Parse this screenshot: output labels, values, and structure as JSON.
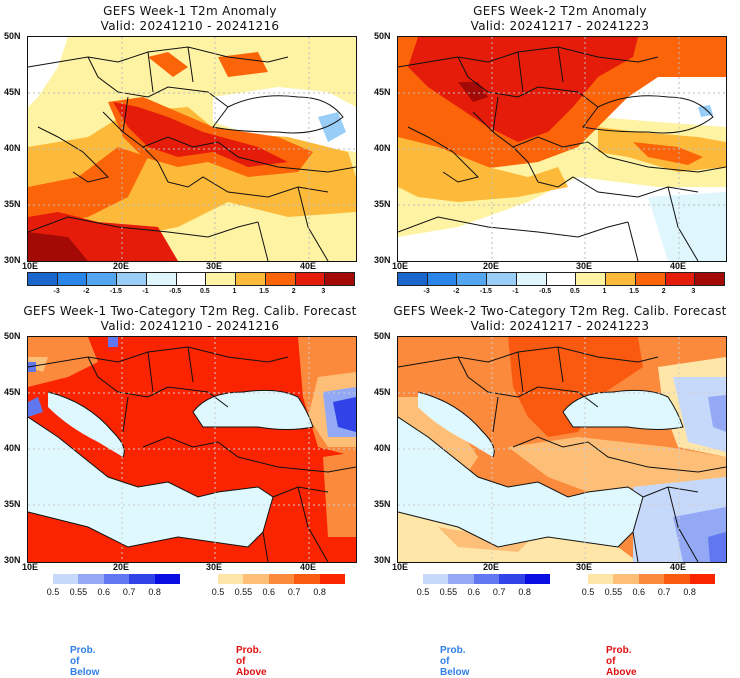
{
  "panels": [
    {
      "title": "GEFS Week-1 T2m Anomaly",
      "valid": "Valid: 20241210 - 20241216",
      "type": "anomaly"
    },
    {
      "title": "GEFS Week-2 T2m Anomaly",
      "valid": "Valid: 20241217 - 20241223",
      "type": "anomaly"
    },
    {
      "title": "GEFS Week-1 Two-Category T2m Reg. Calib. Forecast",
      "valid": "Valid: 20241210 - 20241216",
      "type": "probability"
    },
    {
      "title": "GEFS Week-2 Two-Category T2m Reg. Calib. Forecast",
      "valid": "Valid: 20241217 - 20241223",
      "type": "probability"
    }
  ],
  "axes": {
    "lat_labels": [
      "50N",
      "45N",
      "40N",
      "35N",
      "30N"
    ],
    "lon_labels": [
      "10E",
      "20E",
      "30E",
      "40E"
    ]
  },
  "anomaly_colorbar": {
    "labels": [
      "-3",
      "-2",
      "-1.5",
      "-1",
      "-0.5",
      "0.5",
      "1",
      "1.5",
      "2",
      "3"
    ],
    "colors": [
      "#1a66cc",
      "#2a85e8",
      "#55a6f0",
      "#97cdf7",
      "#dff6fd",
      "#ffffff",
      "#fef3a3",
      "#fdba3a",
      "#fb6408",
      "#e61c0a",
      "#a30a05"
    ]
  },
  "prob_below_colorbar": {
    "labels": [
      "0.5",
      "0.55",
      "0.6",
      "0.7",
      "0.8"
    ],
    "colors": [
      "#c7d9fb",
      "#93a9f5",
      "#6077ef",
      "#2f43e8",
      "#0a0ee0"
    ]
  },
  "prob_above_colorbar": {
    "labels": [
      "0.5",
      "0.55",
      "0.6",
      "0.7",
      "0.8"
    ],
    "colors": [
      "#fee6a9",
      "#fdbf78",
      "#fb8a3c",
      "#fa5a10",
      "#fa2400"
    ]
  },
  "legend": {
    "below_label": "Prob. of Below",
    "above_label": "Prob. of Above",
    "below_color": "#2f7fe8",
    "above_color": "#e01010"
  },
  "sea_color": "#dff8fd"
}
